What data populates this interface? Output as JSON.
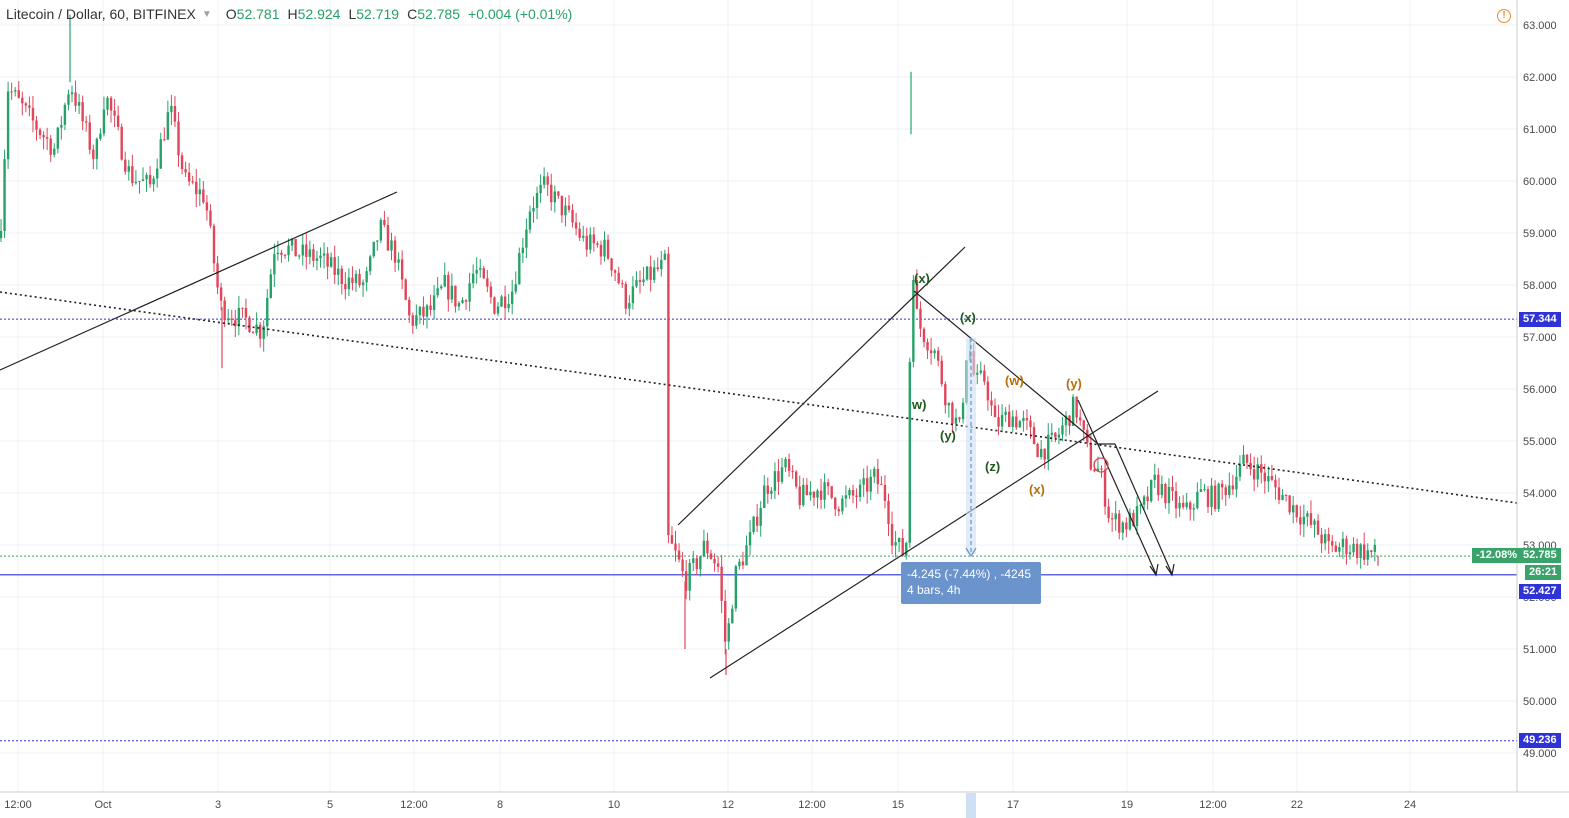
{
  "header": {
    "symbol": "Litecoin / Dollar, 60, BITFINEX",
    "o_label": "O",
    "o_value": "52.781",
    "h_label": "H",
    "h_value": "52.924",
    "l_label": "L",
    "l_value": "52.719",
    "c_label": "C",
    "c_value": "52.785",
    "change": "+0.004 (+0.01%)"
  },
  "price_tags": {
    "level_upper": "57.344",
    "current_pct": "-12.08%",
    "current": "52.785",
    "countdown": "26:21",
    "level_mid": "52.427",
    "level_low": "49.236"
  },
  "measure": {
    "line1": "-4.245 (-7.44%) , -4245",
    "line2": "4 bars, 4h"
  },
  "wave_labels": {
    "x1": "(x)",
    "w1": "w)",
    "y1": "(y)",
    "x2": "(x)",
    "z1": "(z)",
    "w2": "(w)",
    "y2": "(y)",
    "x3": "(x)"
  },
  "colors": {
    "up": "#26a269",
    "down": "#e0455a",
    "blue_level": "#2f33d6",
    "wave_green": "#1d5a1d",
    "wave_orange": "#b8700a",
    "tag_green": "#3aa36a",
    "tag_blue": "#2f33d6"
  },
  "chart_data": {
    "type": "candlestick",
    "ylim": [
      48.7,
      63.2
    ],
    "y_ticks": [
      49,
      50,
      51,
      52,
      53,
      54,
      55,
      56,
      57,
      58,
      59,
      60,
      61,
      62,
      63
    ],
    "y_tick_labels": [
      "49.000",
      "50.000",
      "51.000",
      "52.000",
      "53.000",
      "54.000",
      "55.000",
      "56.000",
      "57.000",
      "58.000",
      "59.000",
      "60.000",
      "61.000",
      "62.000",
      "63.000"
    ],
    "x_ticks": [
      "12:00",
      "Oct",
      "3",
      "5",
      "12:00",
      "8",
      "10",
      "12",
      "12:00",
      "15",
      "17",
      "19",
      "12:00",
      "22",
      "24"
    ],
    "anchors": [
      [
        0,
        58.9
      ],
      [
        8,
        61.8
      ],
      [
        30,
        61.2
      ],
      [
        55,
        60.6
      ],
      [
        70,
        61.9
      ],
      [
        95,
        60.4
      ],
      [
        105,
        61.7
      ],
      [
        130,
        60.1
      ],
      [
        150,
        59.9
      ],
      [
        170,
        61.4
      ],
      [
        185,
        60.0
      ],
      [
        205,
        59.7
      ],
      [
        220,
        57.6
      ],
      [
        235,
        57.4
      ],
      [
        250,
        57.3
      ],
      [
        262,
        57.1
      ],
      [
        275,
        58.8
      ],
      [
        300,
        58.6
      ],
      [
        320,
        58.5
      ],
      [
        345,
        58.1
      ],
      [
        365,
        58.0
      ],
      [
        380,
        59.1
      ],
      [
        395,
        58.6
      ],
      [
        410,
        57.3
      ],
      [
        430,
        57.5
      ],
      [
        445,
        58.0
      ],
      [
        460,
        57.6
      ],
      [
        475,
        58.3
      ],
      [
        495,
        57.6
      ],
      [
        512,
        57.9
      ],
      [
        530,
        59.5
      ],
      [
        545,
        59.9
      ],
      [
        565,
        59.4
      ],
      [
        585,
        58.8
      ],
      [
        605,
        58.7
      ],
      [
        615,
        58.3
      ],
      [
        625,
        57.7
      ],
      [
        645,
        58.1
      ],
      [
        665,
        58.4
      ],
      [
        668,
        53.1
      ],
      [
        678,
        52.7
      ],
      [
        685,
        52.3
      ],
      [
        695,
        52.6
      ],
      [
        705,
        53.0
      ],
      [
        718,
        52.6
      ],
      [
        726,
        51.0
      ],
      [
        735,
        52.4
      ],
      [
        750,
        53.1
      ],
      [
        765,
        54.1
      ],
      [
        785,
        54.5
      ],
      [
        800,
        53.9
      ],
      [
        820,
        54.1
      ],
      [
        840,
        53.8
      ],
      [
        860,
        54.0
      ],
      [
        875,
        54.3
      ],
      [
        886,
        53.9
      ],
      [
        893,
        53.1
      ],
      [
        905,
        52.8
      ],
      [
        909,
        53.7
      ],
      [
        911,
        60.9
      ],
      [
        914,
        57.6
      ],
      [
        920,
        57.2
      ],
      [
        935,
        56.7
      ],
      [
        948,
        55.7
      ],
      [
        960,
        55.2
      ],
      [
        968,
        57.0
      ],
      [
        975,
        56.1
      ],
      [
        985,
        56.2
      ],
      [
        995,
        55.3
      ],
      [
        1010,
        55.5
      ],
      [
        1025,
        55.3
      ],
      [
        1040,
        54.8
      ],
      [
        1055,
        55.0
      ],
      [
        1075,
        55.7
      ],
      [
        1090,
        54.6
      ],
      [
        1100,
        54.4
      ],
      [
        1110,
        53.5
      ],
      [
        1125,
        53.4
      ],
      [
        1140,
        53.6
      ],
      [
        1155,
        54.2
      ],
      [
        1170,
        53.9
      ],
      [
        1185,
        53.6
      ],
      [
        1200,
        54.0
      ],
      [
        1215,
        53.9
      ],
      [
        1230,
        54.2
      ],
      [
        1245,
        54.6
      ],
      [
        1260,
        54.4
      ],
      [
        1280,
        54.0
      ],
      [
        1295,
        53.7
      ],
      [
        1310,
        53.4
      ],
      [
        1320,
        53.2
      ],
      [
        1330,
        52.9
      ],
      [
        1345,
        53.0
      ],
      [
        1360,
        52.9
      ],
      [
        1378,
        52.8
      ]
    ],
    "notable_wicks": [
      [
        70,
        63.2,
        "high"
      ],
      [
        911,
        62.1,
        "high"
      ],
      [
        726,
        50.5,
        "low"
      ],
      [
        685,
        51.0,
        "low"
      ],
      [
        222,
        56.4,
        "low"
      ],
      [
        1378,
        52.6,
        "low"
      ]
    ],
    "levels": [
      {
        "value": 57.344,
        "style": "dotted",
        "color": "#2f33d6"
      },
      {
        "value": 52.785,
        "style": "dotted",
        "color": "#3aa36a"
      },
      {
        "value": 52.427,
        "style": "solid",
        "color": "#2f33d6"
      },
      {
        "value": 49.236,
        "style": "dotted",
        "color": "#2f33d6"
      }
    ]
  }
}
